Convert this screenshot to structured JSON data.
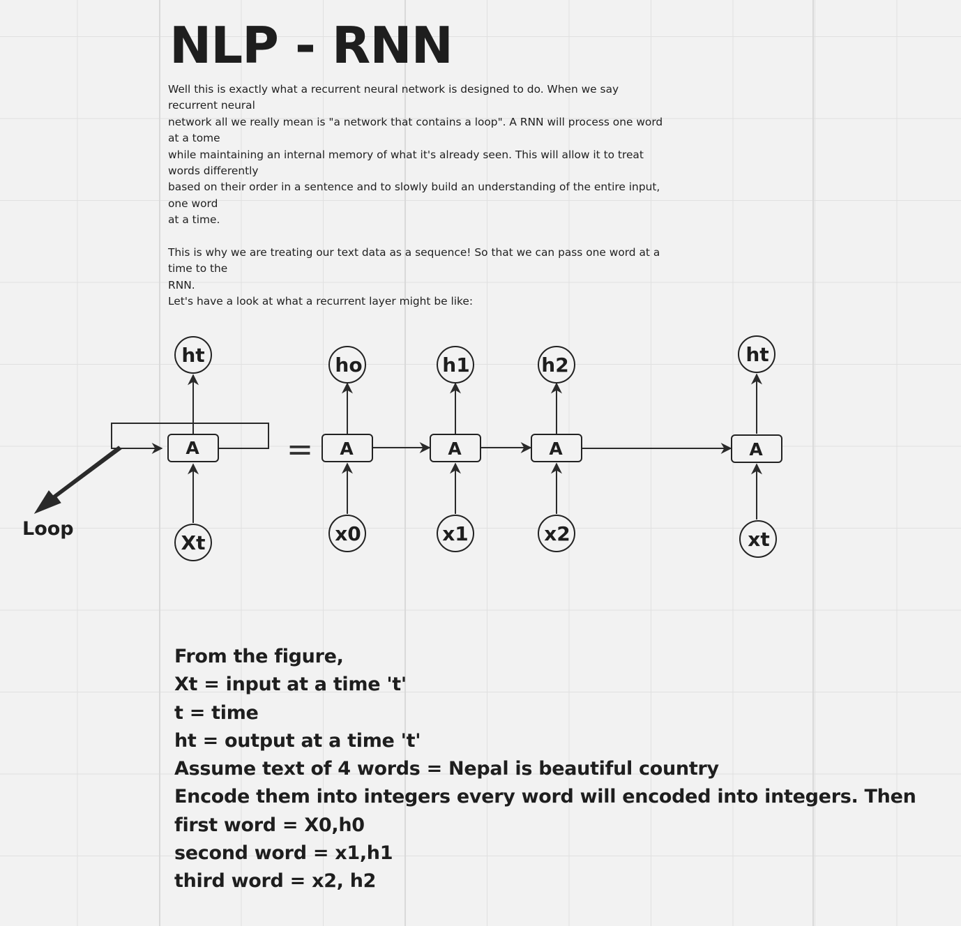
{
  "title": "NLP - RNN",
  "intro_lines": [
    "Well this is exactly what a recurrent neural network is designed to do. When we say",
    "recurrent neural",
    "network all we really mean is \"a network that contains a loop\". A RNN will process one word",
    "at a tome",
    "while maintaining an internal memory of what it's already seen. This will allow it to treat",
    "words differently",
    "based on their order in a sentence and to slowly build an understanding of the entire input,",
    "one word",
    "at a time.",
    "",
    "This is why we are treating our text data as a sequence! So that we can pass one word at a",
    "time to the",
    "RNN.",
    "Let's have a look at what a recurrent layer might be like:"
  ],
  "diagram": {
    "loop_label": "Loop",
    "folded": {
      "output": "ht",
      "cell": "A",
      "input": "Xt"
    },
    "equals_symbol": "=",
    "unrolled": [
      {
        "output": "ho",
        "cell": "A",
        "input": "x0"
      },
      {
        "output": "h1",
        "cell": "A",
        "input": "x1"
      },
      {
        "output": "h2",
        "cell": "A",
        "input": "x2"
      },
      {
        "output": "ht",
        "cell": "A",
        "input": "xt"
      }
    ]
  },
  "notes_lines": [
    "From the figure,",
    "Xt = input at a time 't'",
    "t = time",
    "ht = output at a time 't'",
    "Assume text of 4 words = Nepal is beautiful country",
    "Encode them into integers every word will encoded into integers. Then",
    "first word = X0,h0",
    "second word = x1,h1",
    "third word = x2, h2"
  ]
}
